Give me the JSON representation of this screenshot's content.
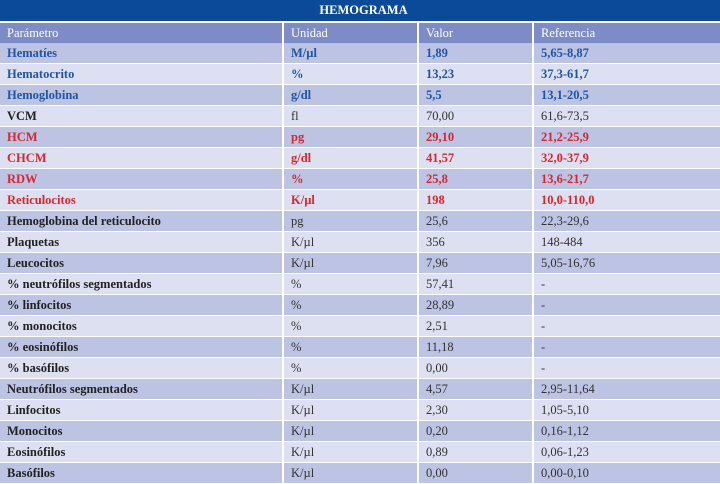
{
  "title": "HEMOGRAMA",
  "columns": [
    "Parámetro",
    "Unidad",
    "Valor",
    "Referencia"
  ],
  "colors": {
    "title_bg": "#0b4a98",
    "header_bg": "#7d8cc6",
    "low": "#1f55a3",
    "high": "#d8262e"
  },
  "rows": [
    {
      "status": "blue",
      "cells": [
        "Hematíes",
        "M/µl",
        "1,89",
        "5,65-8,87"
      ]
    },
    {
      "status": "blue",
      "cells": [
        "Hematocrito",
        "%",
        "13,23",
        "37,3-61,7"
      ]
    },
    {
      "status": "blue",
      "cells": [
        "Hemoglobina",
        "g/dl",
        "5,5",
        "13,1-20,5"
      ]
    },
    {
      "status": "normal",
      "cells": [
        "VCM",
        "fl",
        "70,00",
        "61,6-73,5"
      ]
    },
    {
      "status": "red",
      "cells": [
        "HCM",
        "pg",
        "29,10",
        "21,2-25,9"
      ]
    },
    {
      "status": "red",
      "cells": [
        "CHCM",
        "g/dl",
        "41,57",
        "32,0-37,9"
      ]
    },
    {
      "status": "red",
      "cells": [
        "RDW",
        "%",
        "25,8",
        "13,6-21,7"
      ]
    },
    {
      "status": "red",
      "cells": [
        "Reticulocitos",
        "K/µl",
        "198",
        "10,0-110,0"
      ]
    },
    {
      "status": "normal",
      "cells": [
        "Hemoglobina del reticulocito",
        "pg",
        "25,6",
        "22,3-29,6"
      ]
    },
    {
      "status": "normal",
      "cells": [
        "Plaquetas",
        "K/µl",
        "356",
        "148-484"
      ]
    },
    {
      "status": "normal",
      "cells": [
        "Leucocitos",
        "K/µl",
        "7,96",
        "5,05-16,76"
      ]
    },
    {
      "status": "normal",
      "cells": [
        "% neutrófilos segmentados",
        "%",
        "57,41",
        "-"
      ]
    },
    {
      "status": "normal",
      "cells": [
        "% linfocitos",
        "%",
        "28,89",
        "-"
      ]
    },
    {
      "status": "normal",
      "cells": [
        "% monocitos",
        "%",
        "2,51",
        "-"
      ]
    },
    {
      "status": "normal",
      "cells": [
        "% eosinófilos",
        "%",
        "11,18",
        "-"
      ]
    },
    {
      "status": "normal",
      "cells": [
        "% basófilos",
        "%",
        "0,00",
        "-"
      ]
    },
    {
      "status": "normal",
      "cells": [
        "Neutrófilos segmentados",
        "K/µl",
        "4,57",
        "2,95-11,64"
      ]
    },
    {
      "status": "normal",
      "cells": [
        "Linfocitos",
        "K/µl",
        "2,30",
        "1,05-5,10"
      ]
    },
    {
      "status": "normal",
      "cells": [
        "Monocitos",
        "K/µl",
        "0,20",
        "0,16-1,12"
      ]
    },
    {
      "status": "normal",
      "cells": [
        "Eosinófilos",
        "K/µl",
        "0,89",
        "0,06-1,23"
      ]
    },
    {
      "status": "normal",
      "cells": [
        "Basófilos",
        "K/µl",
        "0,00",
        "0,00-0,10"
      ]
    }
  ]
}
